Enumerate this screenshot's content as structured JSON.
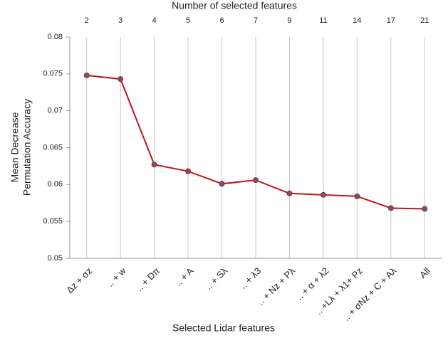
{
  "chart_data": {
    "type": "line",
    "top_axis": {
      "title": "Number of selected features",
      "values": [
        2,
        3,
        4,
        5,
        6,
        7,
        9,
        11,
        14,
        17,
        21
      ]
    },
    "x_label": "Selected Lidar features",
    "y_label": [
      "Mean Decrease",
      "Permutation Accuracy"
    ],
    "categories": [
      "Δz + σz",
      ".. + w",
      ".. + Dπ",
      ".. + A",
      ".. + Sλ",
      ".. + λ3",
      ".. + Nz + Pλ",
      ".. + α + λ2",
      ".. +Lλ + λ1+ Pz",
      ".. + σNz + C + Aλ",
      "All"
    ],
    "series": [
      {
        "name": "Mean Decrease Permutation Accuracy",
        "color": "#c0141a",
        "marker_color": "#5a5f80",
        "values": [
          0.0748,
          0.0743,
          0.0627,
          0.0618,
          0.0601,
          0.0606,
          0.0588,
          0.0586,
          0.0584,
          0.0568,
          0.0567
        ]
      }
    ],
    "ylim": [
      0.05,
      0.08
    ],
    "yticks": [
      0.05,
      0.055,
      0.06,
      0.065,
      0.07,
      0.075,
      0.08
    ],
    "grid": "vertical"
  }
}
